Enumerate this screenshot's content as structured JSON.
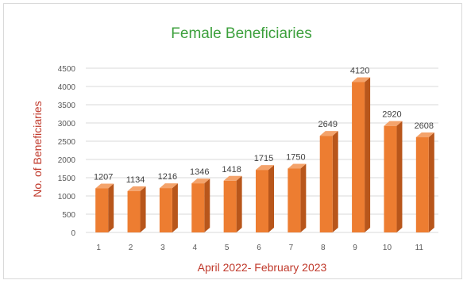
{
  "chart_data": {
    "type": "bar",
    "title": "Female Beneficiaries",
    "xlabel": "April 2022- February 2023",
    "ylabel": "No. of Beneficiaries",
    "categories": [
      "1",
      "2",
      "3",
      "4",
      "5",
      "6",
      "7",
      "8",
      "9",
      "10",
      "11"
    ],
    "values": [
      1207,
      1134,
      1216,
      1346,
      1418,
      1715,
      1750,
      2649,
      4120,
      2920,
      2608
    ],
    "ylim": [
      0,
      4500
    ],
    "yticks": [
      0,
      500,
      1000,
      1500,
      2000,
      2500,
      3000,
      3500,
      4000,
      4500
    ],
    "grid": true,
    "legend": "none",
    "colors": {
      "bar_front": "#ED7D31",
      "bar_side": "#B8561B",
      "bar_top": "#F4A36B",
      "title": "#3CA03C",
      "axis_label": "#C0392B",
      "tick_label": "#595959",
      "data_label": "#404040",
      "grid": "#D9D9D9"
    }
  }
}
